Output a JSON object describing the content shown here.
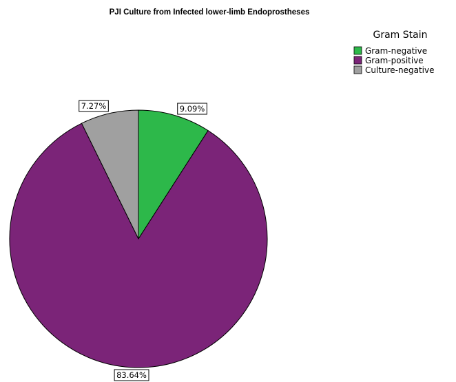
{
  "chart_data": {
    "type": "pie",
    "title": "PJI Culture from Infected lower-limb Endoprostheses",
    "legend": {
      "title": "Gram Stain",
      "placement": "top-right"
    },
    "slices": [
      {
        "label": "Gram-negative",
        "value": 9.09,
        "display": "9.09%",
        "color": "#2db84a"
      },
      {
        "label": "Gram-positive",
        "value": 83.64,
        "display": "83.64%",
        "color": "#7b2478"
      },
      {
        "label": "Culture-negative",
        "value": 7.27,
        "display": "7.27%",
        "color": "#a0a0a0"
      }
    ],
    "start_angle_deg": 0,
    "direction": "clockwise"
  }
}
